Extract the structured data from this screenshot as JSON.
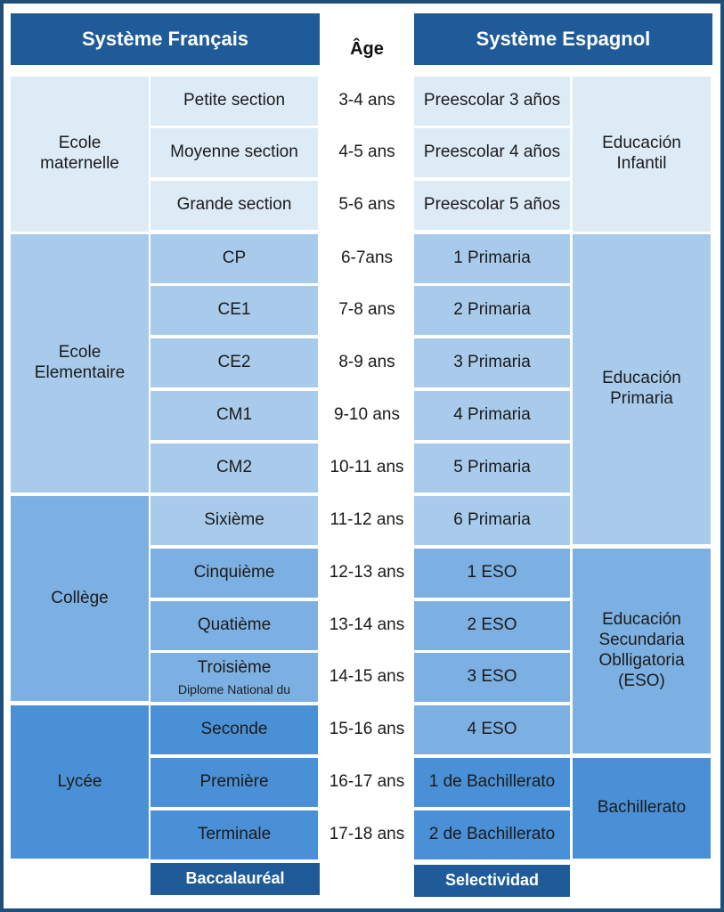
{
  "header": {
    "french": "Système Français",
    "age": "Âge",
    "spanish": "Système Espagnol"
  },
  "french_stages": [
    {
      "label": "Ecole\nmaternelle"
    },
    {
      "label": "Ecole\nElementaire"
    },
    {
      "label": "Collège"
    },
    {
      "label": "Lycée"
    }
  ],
  "rows": [
    {
      "fr": "Petite section",
      "age": "3-4 ans",
      "es": "Preescolar 3 años"
    },
    {
      "fr": "Moyenne section",
      "age": "4-5 ans",
      "es": "Preescolar 4 años"
    },
    {
      "fr": "Grande section",
      "age": "5-6 ans",
      "es": "Preescolar 5 años"
    },
    {
      "fr": "CP",
      "age": "6-7ans",
      "es": "1 Primaria"
    },
    {
      "fr": "CE1",
      "age": "7-8 ans",
      "es": "2 Primaria"
    },
    {
      "fr": "CE2",
      "age": "8-9 ans",
      "es": "3 Primaria"
    },
    {
      "fr": "CM1",
      "age": "9-10 ans",
      "es": "4 Primaria"
    },
    {
      "fr": "CM2",
      "age": "10-11 ans",
      "es": "5 Primaria"
    },
    {
      "fr": "Sixième",
      "age": "11-12 ans",
      "es": "6 Primaria"
    },
    {
      "fr": "Cinquième",
      "age": "12-13 ans",
      "es": "1 ESO"
    },
    {
      "fr": "Quatième",
      "age": "13-14 ans",
      "es": "2 ESO"
    },
    {
      "fr": "Troisième",
      "fr_sub": "Diplome National du",
      "age": "14-15 ans",
      "es": "3 ESO"
    },
    {
      "fr": "Seconde",
      "age": "15-16  ans",
      "es": "4 ESO"
    },
    {
      "fr": "Première",
      "age": "16-17 ans",
      "es": "1 de Bachillerato"
    },
    {
      "fr": "Terminale",
      "age": "17-18 ans",
      "es": "2 de Bachillerato"
    }
  ],
  "spanish_stages": [
    {
      "label": "Educación\nInfantil"
    },
    {
      "label": "Educación\nPrimaria"
    },
    {
      "label": "Educación\nSecundaria\nOblligatoria\n(ESO)"
    },
    {
      "label": "Bachillerato"
    }
  ],
  "footer": {
    "french": "Baccalauréal",
    "spanish": "Selectividad"
  },
  "colors": {
    "header": "#1f5b99",
    "stage1": "#ddebf7",
    "stage2": "#a8cbec",
    "stage3": "#7db0e2",
    "stage4": "#4a90d6"
  }
}
